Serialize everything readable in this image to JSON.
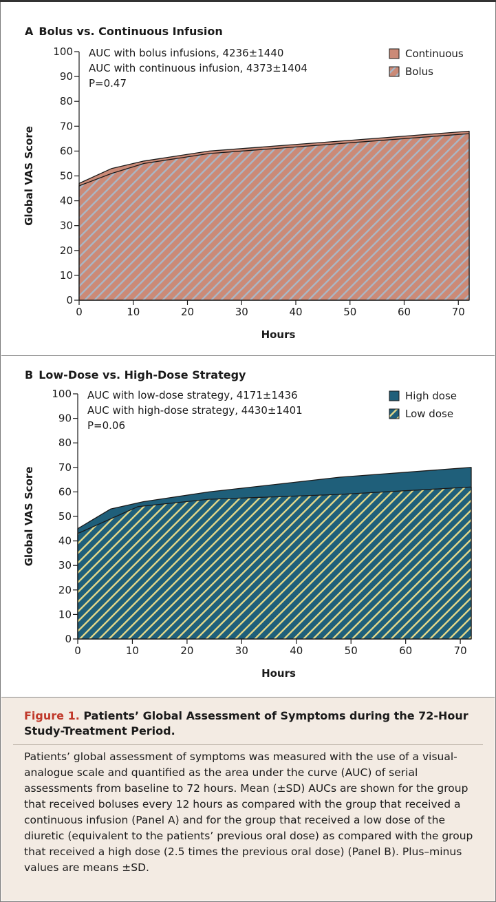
{
  "chart_data": [
    {
      "type": "area",
      "panel_letter": "A",
      "title": "Bolus vs. Continuous Infusion",
      "xlabel": "Hours",
      "ylabel": "Global VAS Score",
      "xlim": [
        0,
        72
      ],
      "ylim": [
        0,
        100
      ],
      "xticks": [
        0,
        10,
        20,
        30,
        40,
        50,
        60,
        70
      ],
      "yticks": [
        0,
        10,
        20,
        30,
        40,
        50,
        60,
        70,
        80,
        90,
        100
      ],
      "annotations": [
        "AUC with bolus infusions, 4236±1440",
        "AUC with continuous infusion, 4373±1404",
        "P=0.47"
      ],
      "legend": {
        "placement": "top-right"
      },
      "series": [
        {
          "name": "Continuous",
          "fill": "#cb8a77",
          "pattern": "solid",
          "x": [
            0,
            6,
            12,
            24,
            48,
            72
          ],
          "y": [
            47,
            53,
            56,
            60,
            64,
            68
          ]
        },
        {
          "name": "Bolus",
          "fill": "#cb8a77",
          "pattern": "hatch",
          "hatch_color": "#a9b7c6",
          "x": [
            0,
            6,
            12,
            24,
            48,
            72
          ],
          "y": [
            46,
            51,
            55,
            59,
            63,
            67
          ]
        }
      ]
    },
    {
      "type": "area",
      "panel_letter": "B",
      "title": "Low-Dose vs. High-Dose Strategy",
      "xlabel": "Hours",
      "ylabel": "Global VAS Score",
      "xlim": [
        0,
        72
      ],
      "ylim": [
        0,
        100
      ],
      "xticks": [
        0,
        10,
        20,
        30,
        40,
        50,
        60,
        70
      ],
      "yticks": [
        0,
        10,
        20,
        30,
        40,
        50,
        60,
        70,
        80,
        90,
        100
      ],
      "annotations": [
        "AUC with low-dose strategy, 4171±1436",
        "AUC with high-dose strategy, 4430±1401",
        "P=0.06"
      ],
      "legend": {
        "placement": "top-right"
      },
      "series": [
        {
          "name": "High dose",
          "fill": "#1f5f7a",
          "pattern": "solid",
          "x": [
            0,
            6,
            12,
            24,
            48,
            72
          ],
          "y": [
            45,
            53,
            56,
            60,
            66,
            70
          ]
        },
        {
          "name": "Low dose",
          "fill": "#1f5f7a",
          "pattern": "hatch",
          "hatch_color": "#e4d98a",
          "x": [
            0,
            6,
            11,
            24,
            48,
            72
          ],
          "y": [
            43,
            49,
            54,
            57,
            59,
            62
          ]
        }
      ]
    }
  ],
  "caption": {
    "figure_label": "Figure 1.",
    "title": "Patients’ Global Assessment of Symptoms during the 72-Hour Study-Treatment Period.",
    "body": "Patients’ global assessment of symptoms was measured with the use of a visual-analogue scale and quantified as the area under the curve (AUC) of serial assessments from baseline to 72 hours. Mean (±SD) AUCs are shown for the group that received boluses every 12 hours as compared with the group that received a continuous infusion (Panel A) and for the group that received a low dose of the diuretic (equivalent to the patients’ previous oral dose) as compared with the group that received a high dose (2.5 times the previous oral dose) (Panel B). Plus–minus values are means ±SD."
  }
}
